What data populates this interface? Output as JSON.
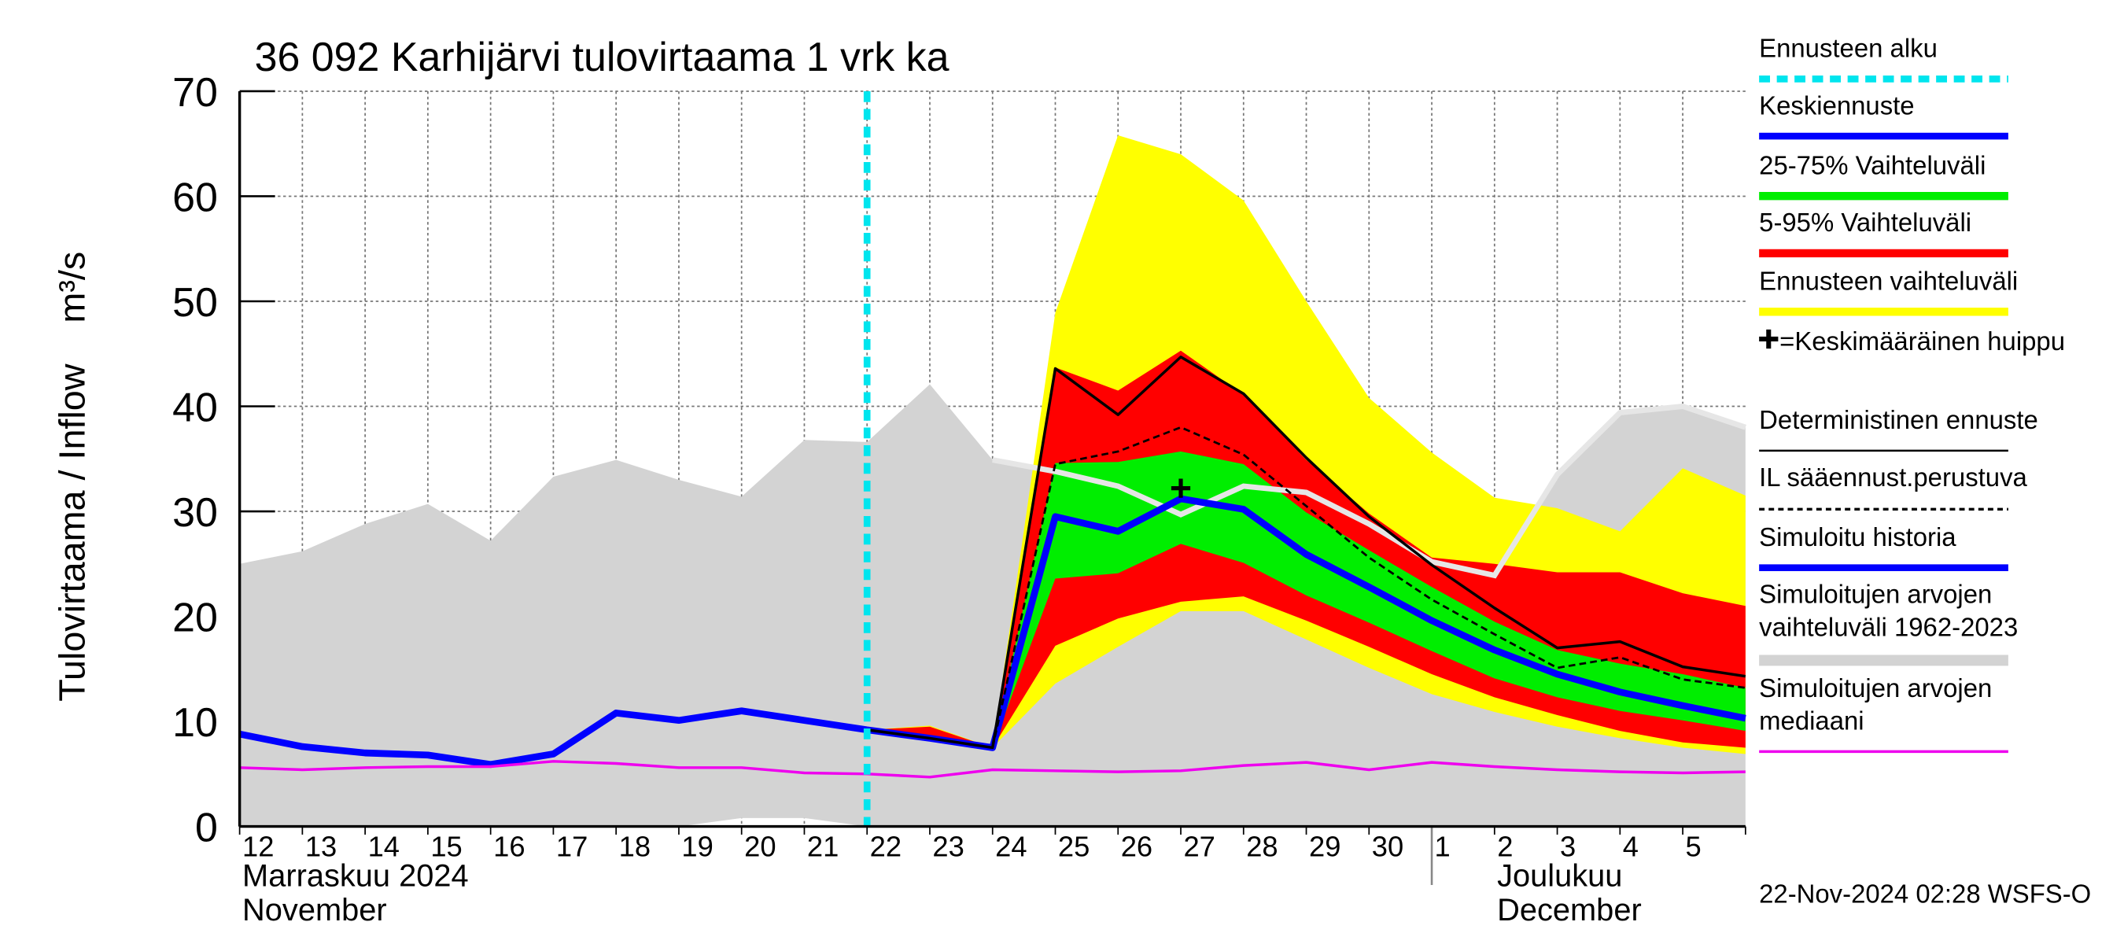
{
  "chart_data": {
    "type": "forecast",
    "title": "36 092 Karhijärvi tulovirtaama 1 vrk ka",
    "ylabel": "Tulovirtaama / Inflow    m³/s",
    "timestamp": "22-Nov-2024 02:28 WSFS-O",
    "categories": [
      "12",
      "13",
      "14",
      "15",
      "16",
      "17",
      "18",
      "19",
      "20",
      "21",
      "22",
      "23",
      "24",
      "25",
      "26",
      "27",
      "28",
      "29",
      "30",
      "1",
      "2",
      "3",
      "4",
      "5",
      null
    ],
    "months": [
      {
        "name": "Marraskuu 2024",
        "name_en": "November",
        "index": 0
      },
      {
        "name": "Joulukuu",
        "name_en": "December",
        "index": 19
      }
    ],
    "ylim": [
      0,
      70
    ],
    "yticks": [
      0,
      10,
      20,
      30,
      40,
      50,
      60,
      70
    ],
    "grid": true,
    "series": [
      {
        "name": "Ennusteen alku",
        "style": "vline",
        "color": "#00e5ee",
        "x": 10
      },
      {
        "name": "Keskiennuste",
        "style": "thick",
        "color": "#0000ff",
        "values": [
          null,
          null,
          null,
          null,
          null,
          null,
          null,
          null,
          null,
          null,
          9.2,
          8.4,
          7.5,
          29.5,
          28.1,
          31.2,
          30.2,
          25.9,
          22.8,
          19.6,
          16.8,
          14.5,
          12.8,
          11.5,
          10.3
        ]
      },
      {
        "name": "25-75% Vaihteluväli",
        "style": "band",
        "color": "#00ee00",
        "high": [
          null,
          null,
          null,
          null,
          null,
          null,
          null,
          null,
          null,
          null,
          null,
          null,
          7.5,
          34.6,
          34.7,
          35.7,
          34.5,
          29.9,
          26.3,
          22.8,
          19.5,
          16.8,
          15.5,
          14.5,
          13.2
        ],
        "low": [
          null,
          null,
          null,
          null,
          null,
          null,
          null,
          null,
          null,
          null,
          null,
          null,
          7.5,
          23.6,
          24.1,
          26.9,
          25.1,
          22.0,
          19.4,
          16.7,
          14.1,
          12.3,
          11.0,
          10.1,
          9.1
        ]
      },
      {
        "name": "5-95% Vaihteluväli",
        "style": "band",
        "color": "#ff0000",
        "high": [
          null,
          null,
          null,
          null,
          null,
          null,
          null,
          null,
          null,
          null,
          9.2,
          9.5,
          7.5,
          43.7,
          41.5,
          45.3,
          41.1,
          34.9,
          29.8,
          25.6,
          25.0,
          24.2,
          24.2,
          22.2,
          21.0
        ],
        "low": [
          null,
          null,
          null,
          null,
          null,
          null,
          null,
          null,
          null,
          null,
          9.2,
          8.4,
          7.5,
          17.2,
          19.8,
          21.4,
          21.9,
          19.6,
          17.1,
          14.5,
          12.3,
          10.6,
          9.1,
          8.0,
          7.5
        ]
      },
      {
        "name": "Ennusteen vaihteluväli",
        "style": "band",
        "color": "#ffff00",
        "high": [
          null,
          null,
          null,
          null,
          null,
          null,
          null,
          null,
          null,
          null,
          9.2,
          9.6,
          7.5,
          48.9,
          65.8,
          64,
          59.6,
          50,
          40.8,
          35.6,
          31.3,
          30.3,
          28.1,
          34.1,
          31.5
        ],
        "low": [
          null,
          null,
          null,
          null,
          null,
          null,
          null,
          null,
          null,
          null,
          9.2,
          8.4,
          7.5,
          13.6,
          17.1,
          20.5,
          20.5,
          17.8,
          15.1,
          12.6,
          10.9,
          9.5,
          8.4,
          7.5,
          6.9
        ]
      },
      {
        "name": "=Keskimääräinen huippu",
        "style": "marker",
        "color": "#000000",
        "x": 15,
        "value": 32.2
      },
      {
        "name": "Deterministinen ennuste",
        "style": "thin",
        "color": "#000000",
        "values": [
          null,
          null,
          null,
          null,
          null,
          null,
          null,
          null,
          null,
          null,
          9.2,
          8.4,
          7.5,
          43.6,
          39.2,
          44.7,
          41.2,
          35.1,
          29.5,
          24.9,
          20.8,
          17.0,
          17.6,
          15.2,
          14.3
        ]
      },
      {
        "name": "IL sääennust.perustuva",
        "style": "dashed",
        "color": "#000000",
        "values": [
          null,
          null,
          null,
          null,
          null,
          null,
          null,
          null,
          null,
          null,
          null,
          null,
          7.5,
          34.5,
          35.7,
          38.0,
          35.4,
          30.5,
          25.6,
          21.6,
          18.3,
          15.1,
          16.1,
          14.0,
          13.2
        ]
      },
      {
        "name": "Simuloitu historia",
        "style": "thick",
        "color": "#0000ff",
        "values": [
          8.8,
          7.6,
          7.0,
          6.8,
          5.9,
          6.9,
          10.8,
          10.1,
          11.0,
          10.1,
          9.2,
          null,
          null,
          null,
          null,
          null,
          null,
          null,
          null,
          null,
          null,
          null,
          null,
          null,
          null
        ]
      },
      {
        "name": "Simuloitujen arvojen vaihteluväli 1962-2023",
        "style": "band",
        "color": "#d3d3d3",
        "high": [
          25,
          26.2,
          28.8,
          30.7,
          27.2,
          33.3,
          34.9,
          33,
          31.4,
          36.8,
          36.6,
          42.1,
          34.9,
          33.8,
          32.4,
          29.7,
          32.4,
          31.8,
          28.8,
          25.2,
          23.9,
          33.5,
          39.4,
          40,
          38
        ],
        "low": [
          0,
          0,
          0,
          0,
          0,
          0,
          0,
          0,
          0.8,
          0.8,
          0,
          0,
          0,
          0,
          0,
          0,
          0,
          0,
          0,
          0,
          0,
          0,
          0,
          0,
          0
        ]
      },
      {
        "name": "Simuloitujen arvojen mediaani",
        "style": "thin",
        "color": "#ee00ee",
        "values": [
          5.6,
          5.4,
          5.6,
          5.7,
          5.7,
          6.2,
          6,
          5.6,
          5.6,
          5.1,
          5,
          4.7,
          5.4,
          5.3,
          5.2,
          5.3,
          5.8,
          6.1,
          5.4,
          6.1,
          5.7,
          5.4,
          5.2,
          5.1,
          5.2
        ]
      }
    ]
  }
}
